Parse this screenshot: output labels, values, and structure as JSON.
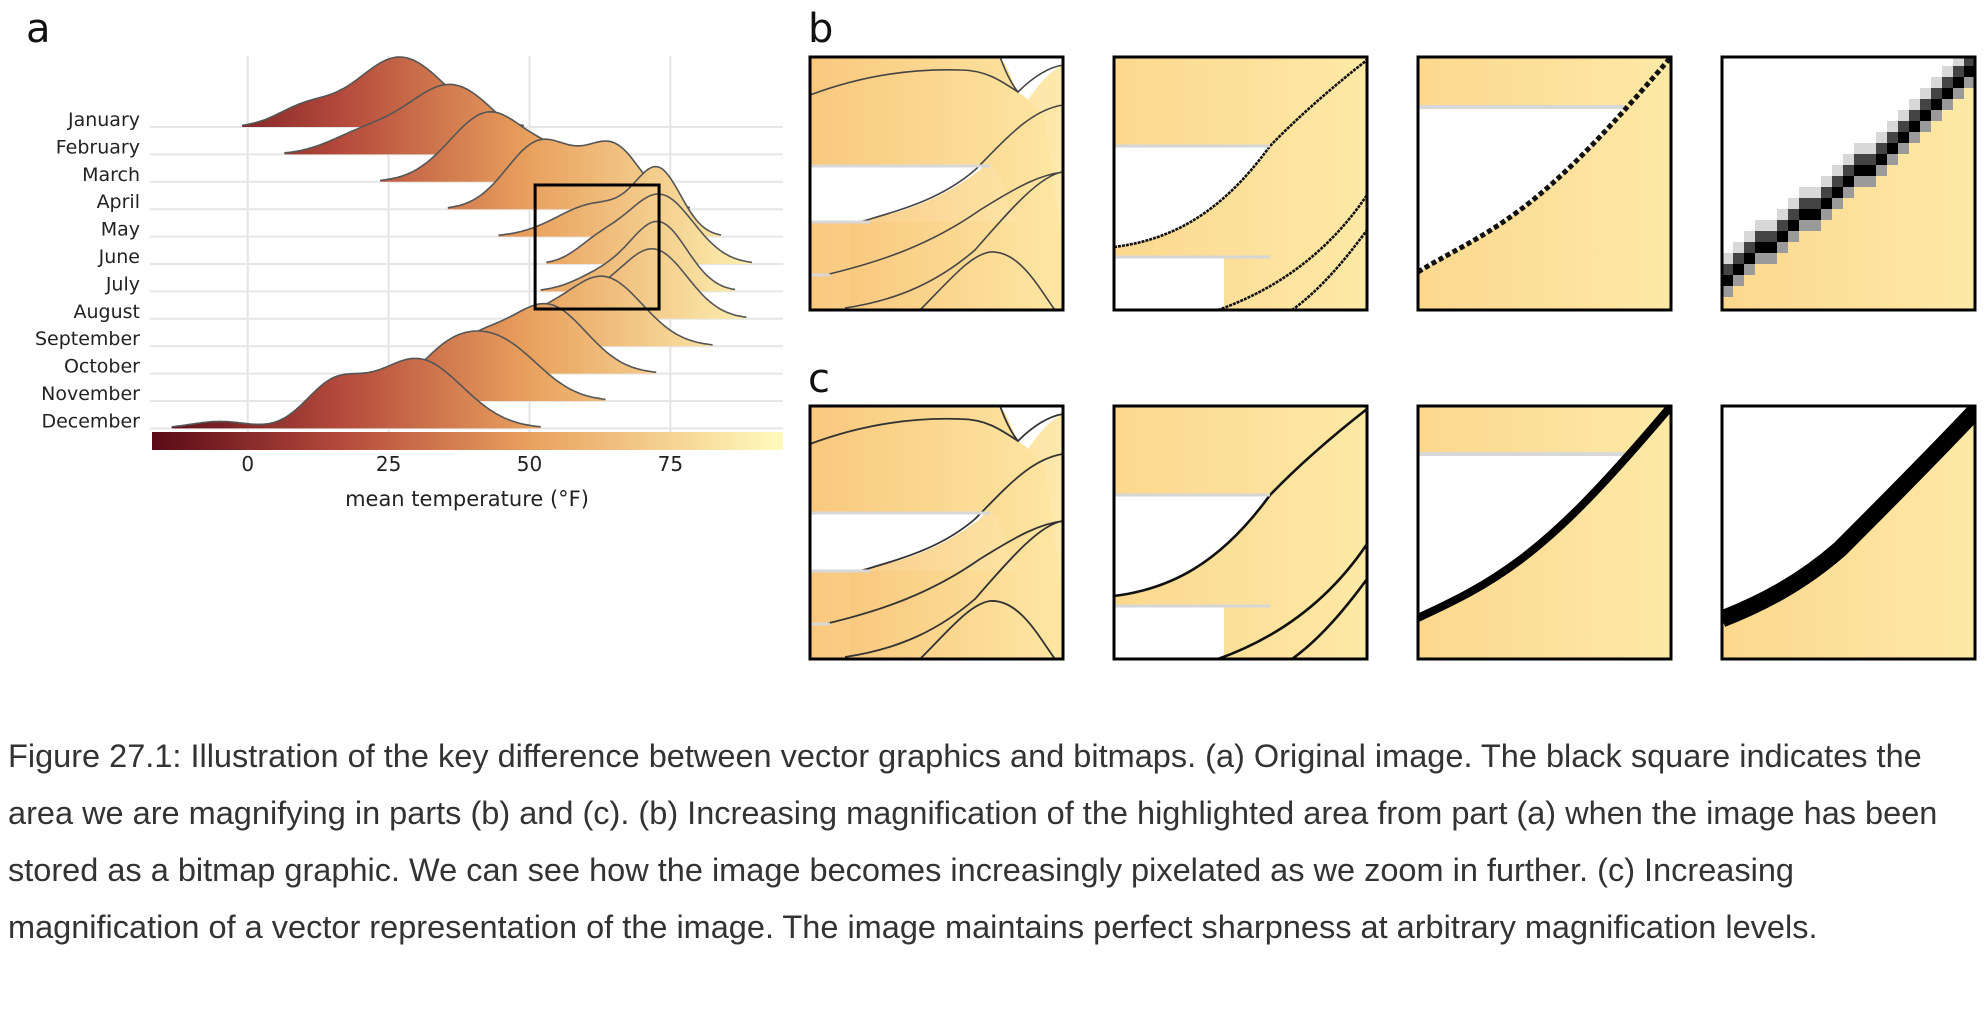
{
  "panels": {
    "a": "a",
    "b": "b",
    "c": "c"
  },
  "chart_data": {
    "type": "ridgeline",
    "xlabel": "mean temperature (°F)",
    "xticks": [
      0,
      25,
      50,
      75
    ],
    "xlim": [
      -17,
      95
    ],
    "grid": true,
    "colorbar": {
      "from": "#5a0a17",
      "mid1": "#b44a3c",
      "mid2": "#e9a15e",
      "to": "#fffbbd",
      "range": [
        -17,
        95
      ]
    },
    "series": [
      {
        "name": "January",
        "peaks": [
          [
            27,
            8,
            1.0
          ],
          [
            10,
            5,
            0.25
          ]
        ]
      },
      {
        "name": "February",
        "peaks": [
          [
            36,
            8,
            1.0
          ],
          [
            20,
            6,
            0.25
          ]
        ]
      },
      {
        "name": "March",
        "peaks": [
          [
            43,
            7,
            1.0
          ],
          [
            55,
            4,
            0.25
          ]
        ]
      },
      {
        "name": "April",
        "peaks": [
          [
            52,
            6,
            0.9
          ],
          [
            65,
            5,
            0.8
          ]
        ]
      },
      {
        "name": "May",
        "peaks": [
          [
            62,
            7,
            0.55
          ],
          [
            73,
            4,
            1.0
          ]
        ]
      },
      {
        "name": "June",
        "peaks": [
          [
            73,
            6,
            1.0
          ],
          [
            62,
            4,
            0.25
          ]
        ]
      },
      {
        "name": "July",
        "peaks": [
          [
            73,
            5,
            1.0
          ],
          [
            63,
            5,
            0.25
          ]
        ]
      },
      {
        "name": "August",
        "peaks": [
          [
            72,
            6,
            1.0
          ],
          [
            60,
            5,
            0.25
          ]
        ]
      },
      {
        "name": "September",
        "peaks": [
          [
            63,
            7,
            1.0
          ],
          [
            50,
            5,
            0.3
          ]
        ]
      },
      {
        "name": "October",
        "peaks": [
          [
            53,
            7,
            1.0
          ],
          [
            40,
            5,
            0.4
          ]
        ]
      },
      {
        "name": "November",
        "peaks": [
          [
            45,
            7,
            0.7
          ],
          [
            35,
            6,
            0.5
          ]
        ]
      },
      {
        "name": "December",
        "peaks": [
          [
            30,
            8,
            1.0
          ],
          [
            15,
            5,
            0.55
          ],
          [
            -5,
            5,
            0.1
          ]
        ]
      }
    ],
    "highlight": {
      "x": [
        51,
        73
      ]
    }
  },
  "caption": "Figure 27.1: Illustration of the key difference between vector graphics and bitmaps. (a) Original image. The black square indicates the area we are magnifying in parts (b) and (c). (b) Increasing magnification of the highlighted area from part (a) when the image has been stored as a bitmap graphic. We can see how the image becomes increasingly pixelated as we zoom in further. (c) Increasing magnification of a vector representation of the image. The image maintains perfect sharpness at arbitrary magnification levels."
}
